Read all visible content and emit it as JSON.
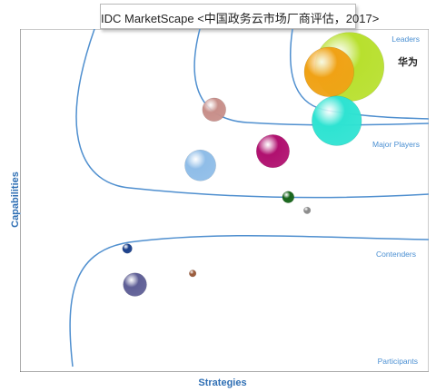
{
  "chart_data": {
    "type": "bubble",
    "title": "IDC MarketScape <中国政务云市场厂商评估，2017>",
    "xlabel": "Strategies",
    "ylabel": "Capabilities",
    "grid": false,
    "regions": [
      "Leaders",
      "Major Players",
      "Contenders",
      "Participants"
    ],
    "annotations": [
      {
        "text": "华为"
      }
    ],
    "points": [
      {
        "x": 6.45,
        "y": 7.12,
        "size": 1.0,
        "color": "#b8e02e"
      },
      {
        "x": 6.05,
        "y": 7.0,
        "size": 0.72,
        "color": "#f0a215"
      },
      {
        "x": 6.2,
        "y": 5.86,
        "size": 0.72,
        "color": "#2ee3d2"
      },
      {
        "x": 3.8,
        "y": 6.12,
        "size": 0.34,
        "color": "#c88f8a"
      },
      {
        "x": 4.95,
        "y": 5.15,
        "size": 0.48,
        "color": "#b0106f"
      },
      {
        "x": 3.53,
        "y": 4.82,
        "size": 0.45,
        "color": "#8fbde8"
      },
      {
        "x": 5.25,
        "y": 4.08,
        "size": 0.17,
        "color": "#17651a"
      },
      {
        "x": 5.62,
        "y": 3.77,
        "size": 0.1,
        "color": "#8a8a8a"
      },
      {
        "x": 2.1,
        "y": 2.88,
        "size": 0.14,
        "color": "#1a3f8a"
      },
      {
        "x": 3.38,
        "y": 2.3,
        "size": 0.1,
        "color": "#9a5a3a"
      },
      {
        "x": 2.25,
        "y": 2.04,
        "size": 0.34,
        "color": "#5f5f96"
      }
    ]
  }
}
